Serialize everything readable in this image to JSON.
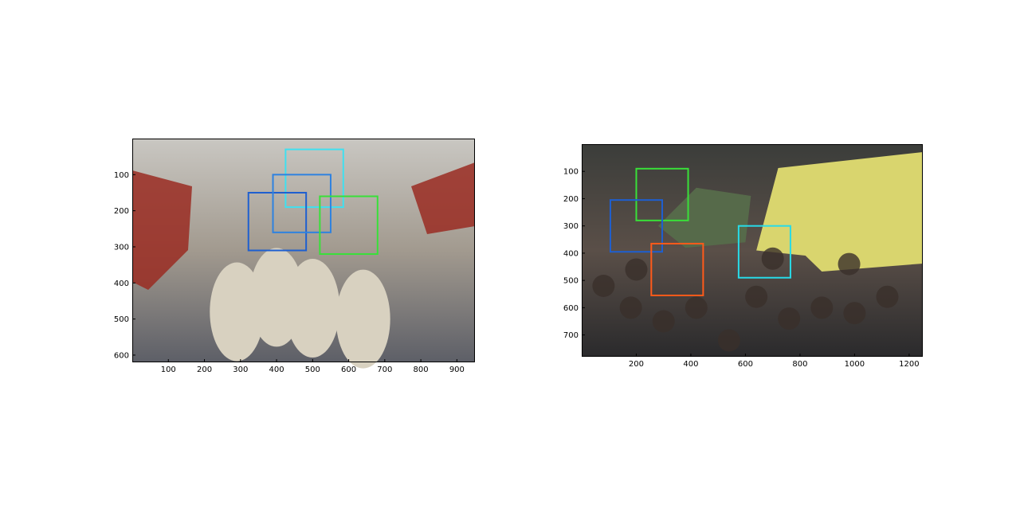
{
  "chart_data": [
    {
      "type": "image",
      "title": "",
      "xlabel": "",
      "ylabel": "",
      "xlim": [
        0,
        950
      ],
      "ylim": [
        620,
        0
      ],
      "xticks": [
        100,
        200,
        300,
        400,
        500,
        600,
        700,
        800,
        900
      ],
      "yticks": [
        100,
        200,
        300,
        400,
        500,
        600
      ],
      "image_colors": {
        "top": "#c9c7c2",
        "mid": "#a29a8f",
        "bottom": "#5d5f67",
        "red": "#9a2b22",
        "animal": "#d8d1c0"
      },
      "boxes": [
        {
          "color": "#3fe0f0",
          "x": [
            425,
            585
          ],
          "y": [
            30,
            190
          ]
        },
        {
          "color": "#1e5fd0",
          "x": [
            322,
            482
          ],
          "y": [
            150,
            310
          ]
        },
        {
          "color": "#2e82e0",
          "x": [
            390,
            550
          ],
          "y": [
            100,
            260
          ]
        },
        {
          "color": "#39e039",
          "x": [
            520,
            680
          ],
          "y": [
            160,
            320
          ]
        }
      ]
    },
    {
      "type": "image",
      "title": "",
      "xlabel": "",
      "ylabel": "",
      "xlim": [
        0,
        1250
      ],
      "ylim": [
        780,
        0
      ],
      "xticks": [
        200,
        400,
        600,
        800,
        1000,
        1200
      ],
      "yticks": [
        100,
        200,
        300,
        400,
        500,
        600,
        700
      ],
      "image_colors": {
        "top": "#3b3d3a",
        "mid": "#5a4f48",
        "bottom": "#2a2a2c",
        "truck": "#d9d56e",
        "bin": "#566a4a"
      },
      "boxes": [
        {
          "color": "#39e039",
          "x": [
            200,
            390
          ],
          "y": [
            90,
            280
          ]
        },
        {
          "color": "#1e5fd0",
          "x": [
            105,
            295
          ],
          "y": [
            205,
            395
          ]
        },
        {
          "color": "#ff5a1a",
          "x": [
            255,
            445
          ],
          "y": [
            365,
            555
          ]
        },
        {
          "color": "#27dbe8",
          "x": [
            575,
            765
          ],
          "y": [
            300,
            490
          ]
        }
      ]
    }
  ]
}
